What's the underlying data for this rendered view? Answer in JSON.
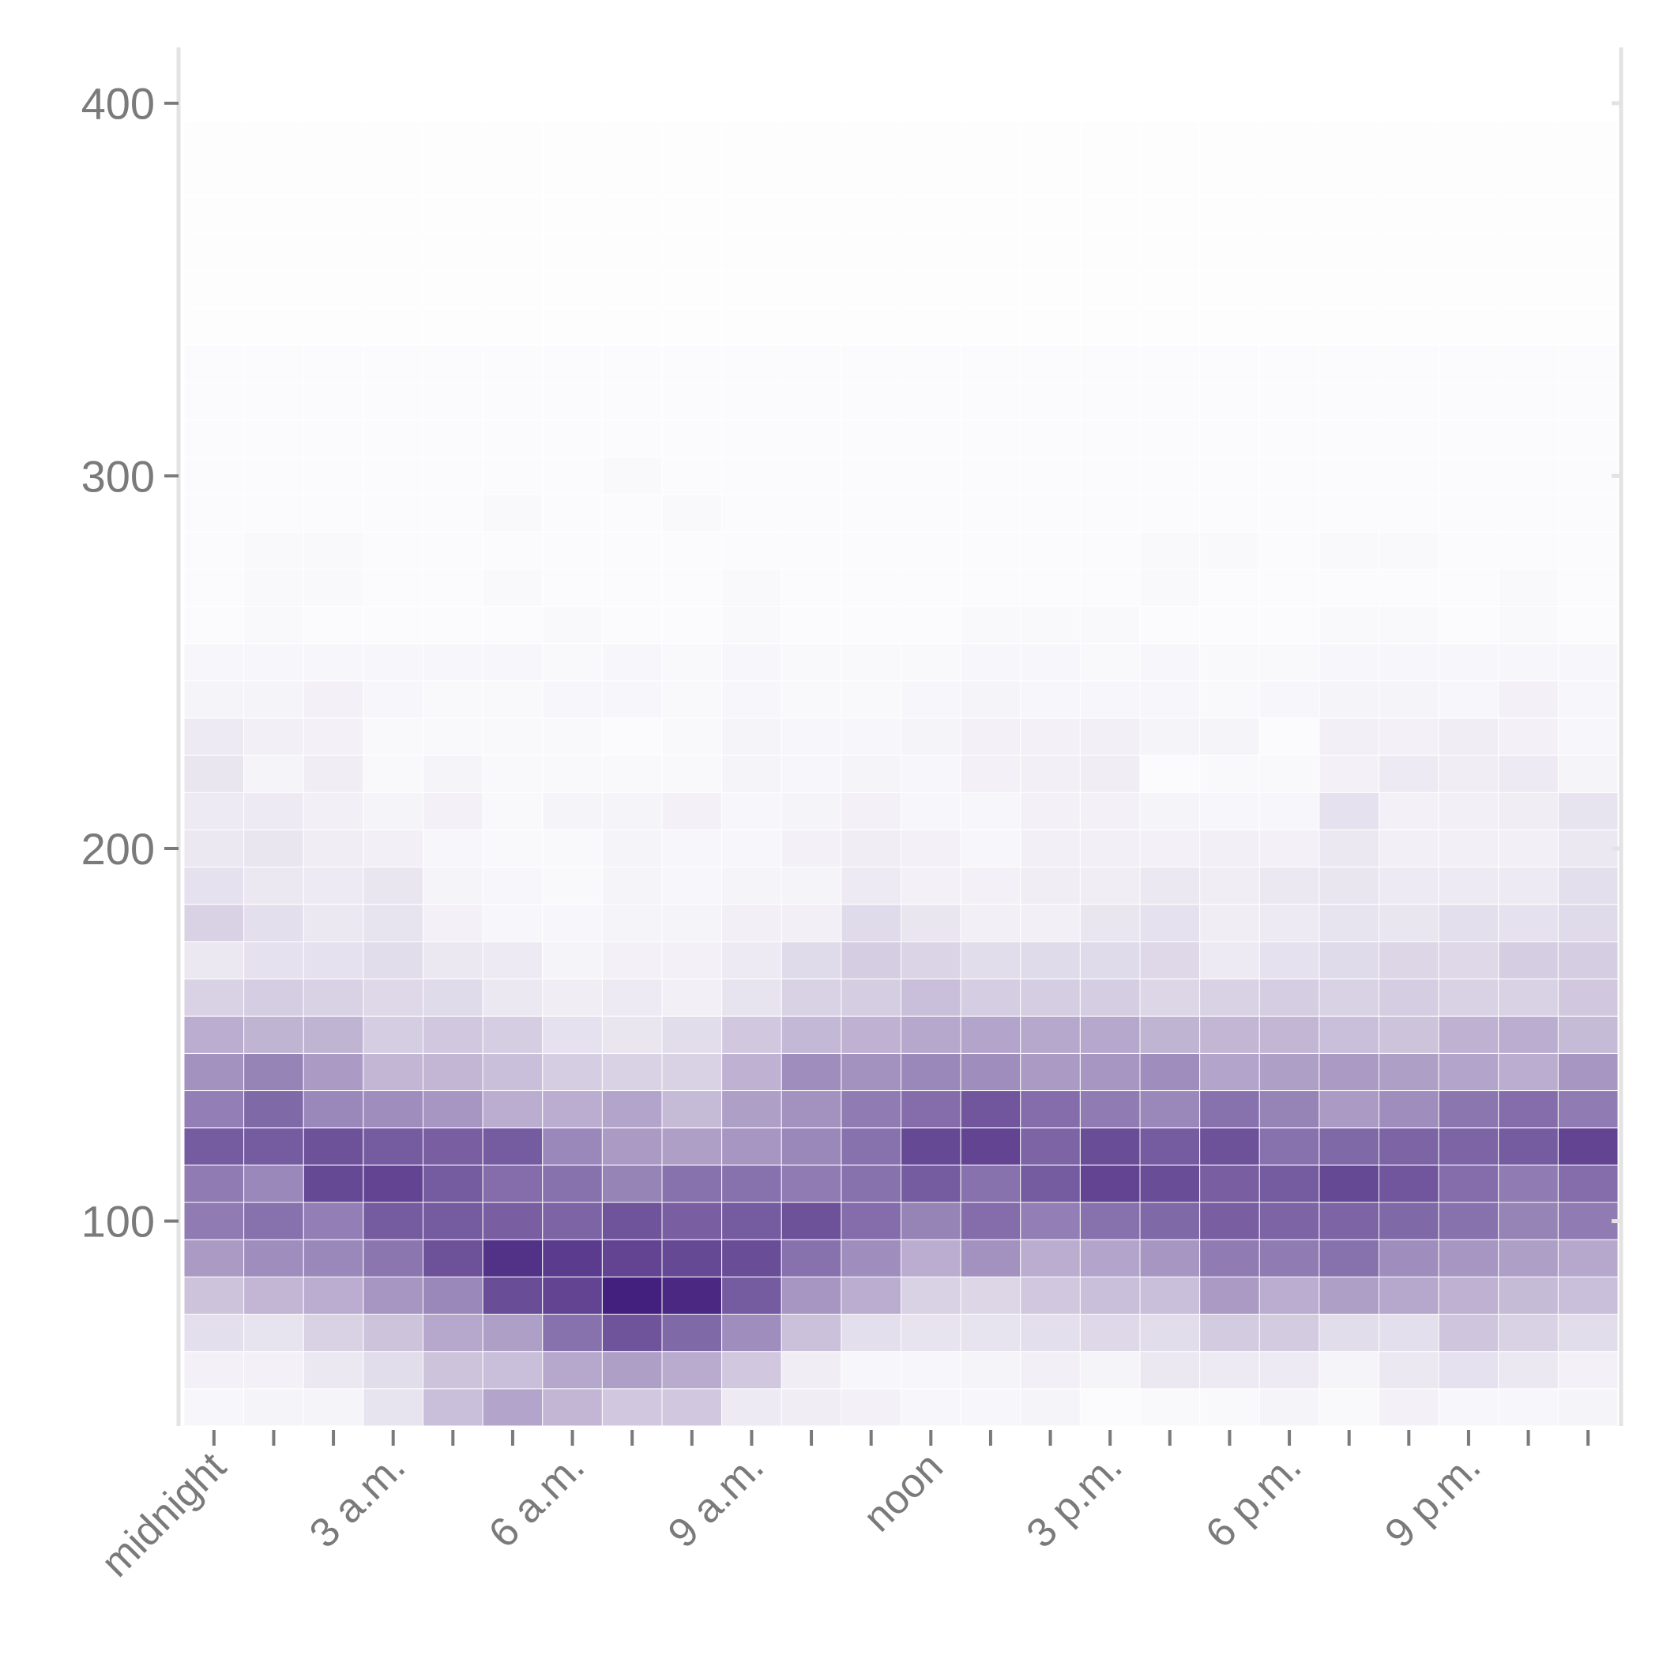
{
  "chart_data": {
    "type": "heatmap",
    "title": "",
    "xlabel": "",
    "ylabel": "",
    "color_low": "#ffffff",
    "color_high": "#3f1b7a",
    "x": [
      "0",
      "1",
      "2",
      "3",
      "4",
      "5",
      "6",
      "7",
      "8",
      "9",
      "10",
      "11",
      "12",
      "13",
      "14",
      "15",
      "16",
      "17",
      "18",
      "19",
      "20",
      "21",
      "22",
      "23"
    ],
    "x_tick_labels": [
      {
        "hour": 0,
        "label": "midnight"
      },
      {
        "hour": 3,
        "label": "3 a.m."
      },
      {
        "hour": 6,
        "label": "6 a.m."
      },
      {
        "hour": 9,
        "label": "9 a.m."
      },
      {
        "hour": 12,
        "label": "noon"
      },
      {
        "hour": 15,
        "label": "3 p.m."
      },
      {
        "hour": 18,
        "label": "6 p.m."
      },
      {
        "hour": 21,
        "label": "9 p.m."
      }
    ],
    "y_tick_labels": [
      "100",
      "200",
      "300",
      "400"
    ],
    "y_ticks": [
      100,
      200,
      300,
      400
    ],
    "ylim": [
      45,
      415
    ],
    "y_bin_start": 45,
    "y_bin_width": 10,
    "intensity": [
      [
        0.04,
        0.05,
        0.05,
        0.12,
        0.28,
        0.4,
        0.32,
        0.24,
        0.24,
        0.09,
        0.08,
        0.06,
        0.04,
        0.04,
        0.05,
        0.02,
        0.03,
        0.03,
        0.05,
        0.03,
        0.06,
        0.04,
        0.04,
        0.05
      ],
      [
        0.06,
        0.06,
        0.1,
        0.15,
        0.26,
        0.28,
        0.38,
        0.42,
        0.37,
        0.24,
        0.08,
        0.04,
        0.04,
        0.05,
        0.07,
        0.05,
        0.1,
        0.09,
        0.09,
        0.05,
        0.1,
        0.13,
        0.1,
        0.06
      ],
      [
        0.14,
        0.12,
        0.2,
        0.26,
        0.38,
        0.42,
        0.62,
        0.75,
        0.66,
        0.5,
        0.27,
        0.14,
        0.12,
        0.12,
        0.14,
        0.17,
        0.15,
        0.23,
        0.23,
        0.15,
        0.14,
        0.25,
        0.2,
        0.15
      ],
      [
        0.26,
        0.32,
        0.36,
        0.46,
        0.52,
        0.78,
        0.82,
        0.98,
        0.94,
        0.72,
        0.46,
        0.36,
        0.2,
        0.18,
        0.24,
        0.28,
        0.28,
        0.44,
        0.36,
        0.42,
        0.38,
        0.34,
        0.3,
        0.28
      ],
      [
        0.44,
        0.5,
        0.52,
        0.6,
        0.76,
        0.9,
        0.86,
        0.82,
        0.8,
        0.78,
        0.62,
        0.5,
        0.36,
        0.48,
        0.36,
        0.4,
        0.46,
        0.58,
        0.58,
        0.62,
        0.5,
        0.46,
        0.42,
        0.38
      ],
      [
        0.58,
        0.62,
        0.56,
        0.72,
        0.72,
        0.7,
        0.68,
        0.75,
        0.7,
        0.72,
        0.76,
        0.64,
        0.54,
        0.64,
        0.56,
        0.62,
        0.66,
        0.7,
        0.68,
        0.68,
        0.66,
        0.62,
        0.54,
        0.58
      ],
      [
        0.58,
        0.52,
        0.8,
        0.82,
        0.72,
        0.64,
        0.62,
        0.54,
        0.62,
        0.62,
        0.58,
        0.62,
        0.72,
        0.62,
        0.72,
        0.82,
        0.78,
        0.7,
        0.72,
        0.8,
        0.74,
        0.64,
        0.58,
        0.64
      ],
      [
        0.72,
        0.72,
        0.76,
        0.72,
        0.7,
        0.72,
        0.52,
        0.44,
        0.42,
        0.46,
        0.52,
        0.62,
        0.8,
        0.82,
        0.68,
        0.78,
        0.72,
        0.76,
        0.62,
        0.66,
        0.68,
        0.68,
        0.72,
        0.82
      ],
      [
        0.56,
        0.66,
        0.52,
        0.5,
        0.46,
        0.36,
        0.36,
        0.4,
        0.3,
        0.42,
        0.48,
        0.58,
        0.64,
        0.74,
        0.64,
        0.58,
        0.52,
        0.62,
        0.54,
        0.44,
        0.5,
        0.6,
        0.64,
        0.58
      ],
      [
        0.48,
        0.54,
        0.44,
        0.32,
        0.32,
        0.28,
        0.22,
        0.2,
        0.2,
        0.34,
        0.5,
        0.48,
        0.52,
        0.5,
        0.44,
        0.46,
        0.5,
        0.4,
        0.42,
        0.44,
        0.42,
        0.4,
        0.36,
        0.46
      ],
      [
        0.36,
        0.33,
        0.33,
        0.22,
        0.24,
        0.22,
        0.13,
        0.11,
        0.15,
        0.24,
        0.31,
        0.34,
        0.38,
        0.4,
        0.38,
        0.38,
        0.33,
        0.32,
        0.32,
        0.28,
        0.26,
        0.34,
        0.36,
        0.3
      ],
      [
        0.2,
        0.22,
        0.2,
        0.17,
        0.16,
        0.1,
        0.08,
        0.09,
        0.07,
        0.12,
        0.2,
        0.22,
        0.28,
        0.22,
        0.22,
        0.22,
        0.18,
        0.2,
        0.22,
        0.2,
        0.22,
        0.2,
        0.2,
        0.24
      ],
      [
        0.1,
        0.13,
        0.13,
        0.15,
        0.1,
        0.09,
        0.05,
        0.06,
        0.06,
        0.09,
        0.16,
        0.22,
        0.19,
        0.15,
        0.16,
        0.16,
        0.17,
        0.09,
        0.13,
        0.16,
        0.18,
        0.17,
        0.22,
        0.22
      ],
      [
        0.2,
        0.14,
        0.1,
        0.12,
        0.06,
        0.04,
        0.04,
        0.05,
        0.05,
        0.07,
        0.07,
        0.16,
        0.11,
        0.07,
        0.07,
        0.11,
        0.13,
        0.08,
        0.09,
        0.12,
        0.11,
        0.14,
        0.13,
        0.16
      ],
      [
        0.13,
        0.1,
        0.09,
        0.11,
        0.05,
        0.04,
        0.03,
        0.05,
        0.04,
        0.05,
        0.05,
        0.09,
        0.06,
        0.06,
        0.08,
        0.08,
        0.1,
        0.08,
        0.1,
        0.11,
        0.09,
        0.09,
        0.09,
        0.14
      ],
      [
        0.1,
        0.11,
        0.08,
        0.07,
        0.04,
        0.03,
        0.03,
        0.05,
        0.04,
        0.04,
        0.06,
        0.08,
        0.06,
        0.04,
        0.07,
        0.07,
        0.06,
        0.07,
        0.06,
        0.1,
        0.07,
        0.07,
        0.07,
        0.1
      ],
      [
        0.09,
        0.09,
        0.07,
        0.05,
        0.06,
        0.03,
        0.05,
        0.05,
        0.06,
        0.04,
        0.05,
        0.06,
        0.04,
        0.04,
        0.06,
        0.06,
        0.05,
        0.04,
        0.04,
        0.13,
        0.06,
        0.07,
        0.08,
        0.12
      ],
      [
        0.11,
        0.05,
        0.08,
        0.03,
        0.05,
        0.03,
        0.03,
        0.03,
        0.03,
        0.05,
        0.04,
        0.05,
        0.04,
        0.06,
        0.07,
        0.08,
        0.02,
        0.03,
        0.03,
        0.06,
        0.09,
        0.08,
        0.09,
        0.05
      ],
      [
        0.09,
        0.07,
        0.06,
        0.03,
        0.03,
        0.03,
        0.03,
        0.02,
        0.03,
        0.05,
        0.04,
        0.04,
        0.05,
        0.06,
        0.06,
        0.07,
        0.05,
        0.05,
        0.02,
        0.07,
        0.06,
        0.08,
        0.06,
        0.04
      ],
      [
        0.05,
        0.05,
        0.06,
        0.04,
        0.03,
        0.03,
        0.04,
        0.04,
        0.03,
        0.04,
        0.03,
        0.03,
        0.04,
        0.05,
        0.04,
        0.04,
        0.04,
        0.03,
        0.04,
        0.05,
        0.05,
        0.04,
        0.06,
        0.04
      ],
      [
        0.04,
        0.04,
        0.04,
        0.04,
        0.04,
        0.04,
        0.03,
        0.04,
        0.03,
        0.04,
        0.03,
        0.03,
        0.03,
        0.04,
        0.04,
        0.03,
        0.04,
        0.03,
        0.03,
        0.04,
        0.04,
        0.04,
        0.04,
        0.04
      ],
      [
        0.02,
        0.03,
        0.02,
        0.02,
        0.02,
        0.02,
        0.03,
        0.02,
        0.02,
        0.03,
        0.02,
        0.02,
        0.02,
        0.03,
        0.03,
        0.03,
        0.02,
        0.02,
        0.02,
        0.03,
        0.03,
        0.02,
        0.03,
        0.02
      ],
      [
        0.02,
        0.03,
        0.03,
        0.02,
        0.02,
        0.03,
        0.02,
        0.02,
        0.02,
        0.03,
        0.02,
        0.02,
        0.02,
        0.02,
        0.02,
        0.02,
        0.03,
        0.02,
        0.02,
        0.02,
        0.02,
        0.02,
        0.03,
        0.02
      ],
      [
        0.02,
        0.03,
        0.03,
        0.02,
        0.02,
        0.02,
        0.02,
        0.02,
        0.02,
        0.02,
        0.02,
        0.02,
        0.02,
        0.02,
        0.02,
        0.02,
        0.03,
        0.03,
        0.02,
        0.03,
        0.03,
        0.02,
        0.02,
        0.02
      ],
      [
        0.02,
        0.02,
        0.02,
        0.02,
        0.02,
        0.03,
        0.02,
        0.02,
        0.03,
        0.02,
        0.02,
        0.02,
        0.02,
        0.02,
        0.02,
        0.02,
        0.02,
        0.02,
        0.02,
        0.02,
        0.02,
        0.02,
        0.02,
        0.02
      ],
      [
        0.02,
        0.02,
        0.02,
        0.02,
        0.02,
        0.02,
        0.02,
        0.03,
        0.02,
        0.02,
        0.02,
        0.02,
        0.02,
        0.02,
        0.02,
        0.02,
        0.02,
        0.02,
        0.02,
        0.02,
        0.02,
        0.02,
        0.02,
        0.02
      ],
      [
        0.02,
        0.02,
        0.02,
        0.02,
        0.02,
        0.02,
        0.02,
        0.02,
        0.02,
        0.02,
        0.02,
        0.02,
        0.02,
        0.02,
        0.02,
        0.02,
        0.02,
        0.02,
        0.02,
        0.02,
        0.02,
        0.02,
        0.02,
        0.02
      ],
      [
        0.02,
        0.02,
        0.02,
        0.02,
        0.02,
        0.02,
        0.02,
        0.02,
        0.02,
        0.02,
        0.02,
        0.02,
        0.02,
        0.02,
        0.02,
        0.02,
        0.02,
        0.02,
        0.02,
        0.02,
        0.02,
        0.02,
        0.02,
        0.02
      ],
      [
        0.02,
        0.02,
        0.02,
        0.02,
        0.02,
        0.02,
        0.02,
        0.02,
        0.02,
        0.02,
        0.02,
        0.02,
        0.02,
        0.02,
        0.02,
        0.02,
        0.02,
        0.02,
        0.02,
        0.02,
        0.02,
        0.02,
        0.02,
        0.02
      ],
      [
        0.01,
        0.01,
        0.01,
        0.01,
        0.01,
        0.01,
        0.01,
        0.01,
        0.01,
        0.01,
        0.01,
        0.01,
        0.01,
        0.01,
        0.01,
        0.01,
        0.01,
        0.01,
        0.01,
        0.01,
        0.01,
        0.01,
        0.01,
        0.01
      ],
      [
        0.01,
        0.01,
        0.01,
        0.01,
        0.01,
        0.01,
        0.01,
        0.01,
        0.01,
        0.01,
        0.01,
        0.01,
        0.01,
        0.01,
        0.01,
        0.01,
        0.01,
        0.01,
        0.01,
        0.01,
        0.01,
        0.01,
        0.01,
        0.01
      ],
      [
        0.01,
        0.01,
        0.01,
        0.01,
        0.01,
        0.01,
        0.01,
        0.01,
        0.01,
        0.01,
        0.01,
        0.01,
        0.01,
        0.01,
        0.01,
        0.01,
        0.01,
        0.01,
        0.01,
        0.01,
        0.01,
        0.01,
        0.01,
        0.01
      ],
      [
        0.01,
        0.01,
        0.01,
        0.01,
        0.01,
        0.01,
        0.01,
        0.01,
        0.01,
        0.01,
        0.01,
        0.01,
        0.01,
        0.01,
        0.01,
        0.01,
        0.01,
        0.01,
        0.01,
        0.01,
        0.01,
        0.01,
        0.01,
        0.01
      ],
      [
        0.01,
        0.01,
        0.01,
        0.01,
        0.01,
        0.01,
        0.01,
        0.01,
        0.01,
        0.01,
        0.01,
        0.01,
        0.01,
        0.01,
        0.01,
        0.01,
        0.01,
        0.01,
        0.01,
        0.01,
        0.01,
        0.01,
        0.01,
        0.01
      ],
      [
        0.01,
        0.01,
        0.01,
        0.01,
        0.01,
        0.01,
        0.01,
        0.01,
        0.01,
        0.01,
        0.01,
        0.01,
        0.01,
        0.01,
        0.01,
        0.01,
        0.01,
        0.01,
        0.01,
        0.01,
        0.01,
        0.01,
        0.01,
        0.01
      ]
    ]
  }
}
